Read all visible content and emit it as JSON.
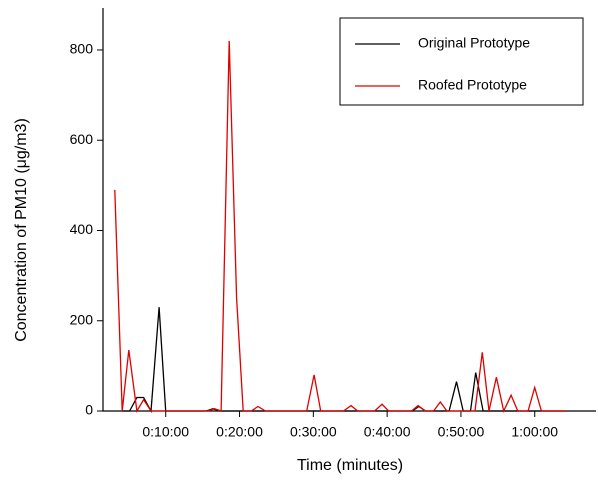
{
  "chart_data": {
    "type": "line",
    "x_label": "Time (minutes)",
    "y_label": "Concentration of PM10 (μg/m3)",
    "xlim": [
      1.5,
      68.3
    ],
    "ylim": [
      0,
      893
    ],
    "xticks": [
      {
        "value": 10,
        "label": "0:10:00"
      },
      {
        "value": 20,
        "label": "0:20:00"
      },
      {
        "value": 30,
        "label": "0:30:00"
      },
      {
        "value": 40,
        "label": "0:40:00"
      },
      {
        "value": 50,
        "label": "0:50:00"
      },
      {
        "value": 60,
        "label": "1:00:00"
      }
    ],
    "yticks": [
      0,
      200,
      400,
      600,
      800
    ],
    "grid": false,
    "legend": "upper right",
    "series": [
      {
        "name": "Original Prototype",
        "color": "#000000",
        "x": [
          4.1,
          5.1,
          6.1,
          7.0,
          8.0,
          9.1,
          10.0,
          15.5,
          16.4,
          17.3,
          43.4,
          44.3,
          45.2,
          48.4,
          49.4,
          50.3,
          51.3,
          52.0,
          53.0,
          64.2
        ],
        "values": [
          0,
          0,
          30,
          30,
          0,
          230,
          0,
          0,
          5,
          0,
          0,
          10,
          0,
          0,
          65,
          0,
          0,
          85,
          0,
          0
        ]
      },
      {
        "name": "Roofed Prototype",
        "color": "#e00000",
        "x": [
          3.1,
          4.1,
          5.0,
          6.1,
          7.0,
          8.0,
          15.7,
          16.6,
          17.5,
          18.6,
          19.6,
          20.5,
          21.6,
          22.5,
          23.5,
          29.1,
          30.1,
          31.0,
          34.1,
          35.1,
          36.0,
          38.3,
          39.3,
          40.2,
          43.3,
          44.2,
          45.2,
          46.3,
          47.2,
          48.1,
          51.9,
          52.9,
          53.8,
          54.8,
          55.8,
          56.8,
          57.7,
          59.1,
          60.0,
          60.9,
          64.2
        ],
        "values": [
          490,
          0,
          135,
          0,
          25,
          0,
          0,
          5,
          0,
          820,
          250,
          0,
          0,
          10,
          0,
          0,
          80,
          0,
          0,
          12,
          0,
          0,
          15,
          0,
          0,
          12,
          0,
          0,
          20,
          0,
          0,
          130,
          0,
          75,
          0,
          35,
          0,
          0,
          52,
          0,
          0
        ]
      }
    ]
  }
}
